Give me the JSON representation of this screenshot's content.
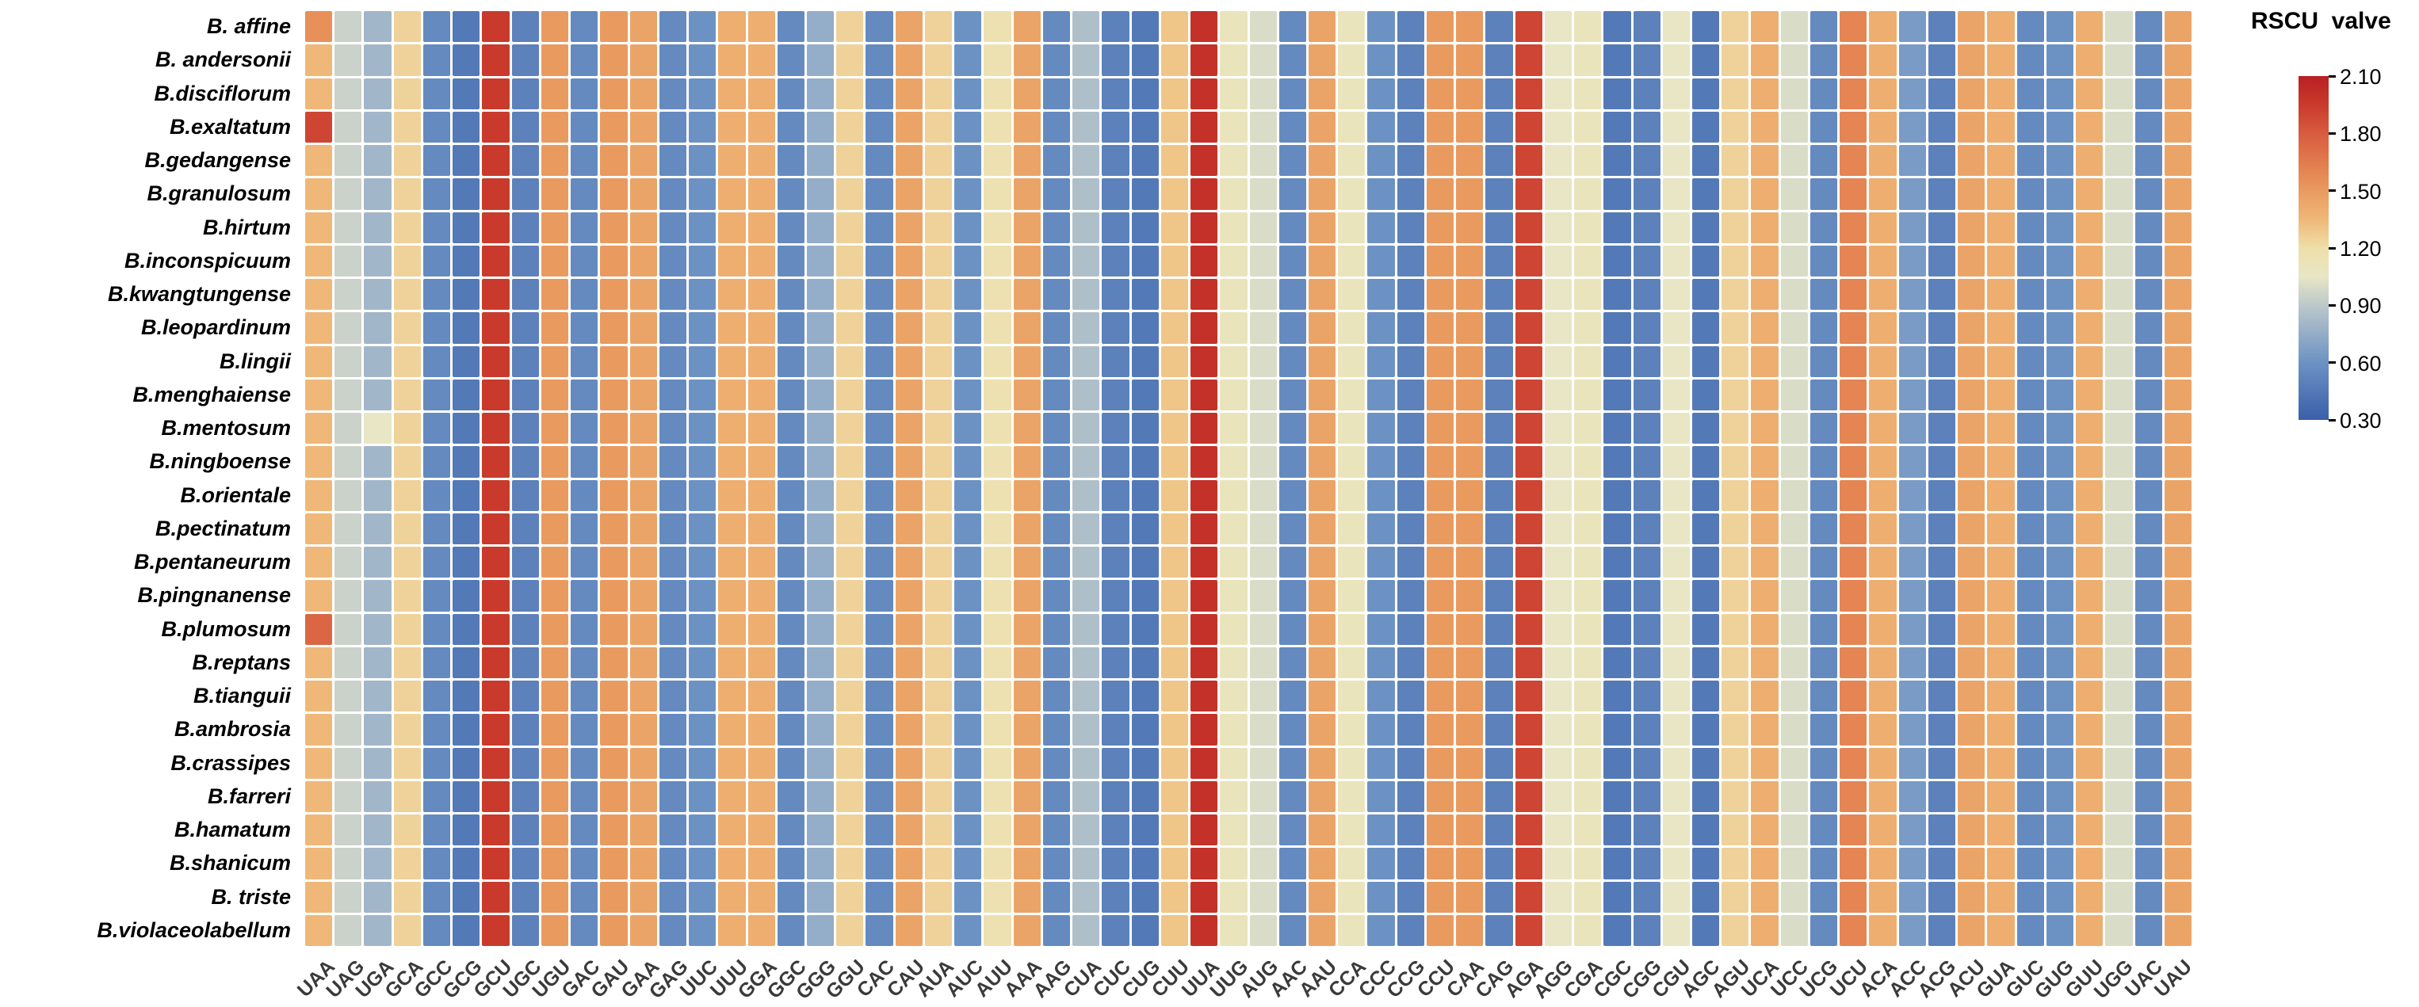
{
  "chart_data": {
    "type": "heatmap",
    "title": "",
    "legend_title": "RSCU  valve",
    "rows": [
      "B. affine",
      "B. andersonii",
      "B.disciflorum",
      "B.exaltatum",
      "B.gedangense",
      "B.granulosum",
      "B.hirtum",
      "B.inconspicuum",
      "B.kwangtungense",
      "B.leopardinum",
      "B.lingii",
      "B.menghaiense",
      "B.mentosum",
      "B.ningboense",
      "B.orientale",
      "B.pectinatum",
      "B.pentaneurum",
      "B.pingnanense",
      "B.plumosum",
      "B.reptans",
      "B.tianguii",
      "B.ambrosia",
      "B.crassipes",
      "B.farreri",
      "B.hamatum",
      "B.shanicum",
      "B. triste",
      "B.violaceolabellum"
    ],
    "columns": [
      "UAA",
      "UAG",
      "UGA",
      "GCA",
      "GCC",
      "GCG",
      "GCU",
      "UGC",
      "UGU",
      "GAC",
      "GAU",
      "GAA",
      "GAG",
      "UUC",
      "UUU",
      "GGA",
      "GGC",
      "GGG",
      "GGU",
      "CAC",
      "CAU",
      "AUA",
      "AUC",
      "AUU",
      "AAA",
      "AAG",
      "CUA",
      "CUC",
      "CUG",
      "CUU",
      "UUA",
      "UUG",
      "AUG",
      "AAC",
      "AAU",
      "CCA",
      "CCC",
      "CCG",
      "CCU",
      "CAA",
      "CAG",
      "AGA",
      "AGG",
      "CGA",
      "CGC",
      "CGG",
      "CGU",
      "AGC",
      "AGU",
      "UCA",
      "UCC",
      "UCG",
      "UCU",
      "ACA",
      "ACC",
      "ACG",
      "ACU",
      "GUA",
      "GUC",
      "GUG",
      "GUU",
      "UGG",
      "UAC",
      "UAU"
    ],
    "values_by_codon": {
      "UAA": 1.35,
      "UAG": 0.95,
      "UGA": 0.8,
      "GCA": 1.25,
      "GCC": 0.55,
      "GCG": 0.45,
      "GCU": 1.95,
      "UGC": 0.5,
      "UGU": 1.5,
      "GAC": 0.55,
      "GAU": 1.5,
      "GAA": 1.45,
      "GAG": 0.55,
      "UUC": 0.6,
      "UUU": 1.4,
      "GGA": 1.4,
      "GGC": 0.55,
      "GGG": 0.75,
      "GGU": 1.25,
      "CAC": 0.55,
      "CAU": 1.45,
      "AUA": 1.25,
      "AUC": 0.6,
      "AUU": 1.15,
      "AAA": 1.45,
      "AAG": 0.55,
      "CUA": 0.85,
      "CUC": 0.5,
      "CUG": 0.45,
      "CUU": 1.3,
      "UUA": 2.0,
      "UUG": 1.1,
      "AUG": 1.0,
      "AAC": 0.55,
      "AAU": 1.45,
      "CCA": 1.1,
      "CCC": 0.6,
      "CCG": 0.5,
      "CCU": 1.5,
      "CAA": 1.5,
      "CAG": 0.5,
      "AGA": 1.9,
      "AGG": 1.05,
      "CGA": 1.1,
      "CGC": 0.45,
      "CGG": 0.5,
      "CGU": 1.05,
      "AGC": 0.45,
      "AGU": 1.25,
      "UCA": 1.4,
      "UCC": 1.0,
      "UCG": 0.55,
      "UCU": 1.6,
      "ACA": 1.4,
      "ACC": 0.65,
      "ACG": 0.5,
      "ACU": 1.45,
      "GUA": 1.4,
      "GUC": 0.55,
      "GUG": 0.6,
      "GUU": 1.4,
      "UGG": 1.0,
      "UAC": 0.55,
      "UAU": 1.45
    },
    "overrides": [
      {
        "species": "B. affine",
        "codon": "UAA",
        "value": 1.55
      },
      {
        "species": "B.exaltatum",
        "codon": "UAA",
        "value": 1.9
      },
      {
        "species": "B.plumosum",
        "codon": "UAA",
        "value": 1.75
      },
      {
        "species": "B.mentosum",
        "codon": "UGA",
        "value": 1.05
      }
    ],
    "color_scale": {
      "min": 0.3,
      "max": 2.1,
      "ticks": [
        "2.10",
        "1.80",
        "1.50",
        "1.20",
        "0.90",
        "0.60",
        "0.30"
      ],
      "stops": [
        [
          0.3,
          "#3B5FAA"
        ],
        [
          0.6,
          "#6C92C4"
        ],
        [
          0.9,
          "#BCC8CB"
        ],
        [
          1.05,
          "#E8E6C5"
        ],
        [
          1.2,
          "#EFDFA9"
        ],
        [
          1.35,
          "#EFB878"
        ],
        [
          1.5,
          "#E99A5F"
        ],
        [
          1.65,
          "#E27B4D"
        ],
        [
          1.8,
          "#D85B40"
        ],
        [
          1.95,
          "#C93A2C"
        ],
        [
          2.1,
          "#B81F22"
        ]
      ],
      "legend_position": "right"
    },
    "grid": true,
    "xlabel": "",
    "ylabel": ""
  }
}
